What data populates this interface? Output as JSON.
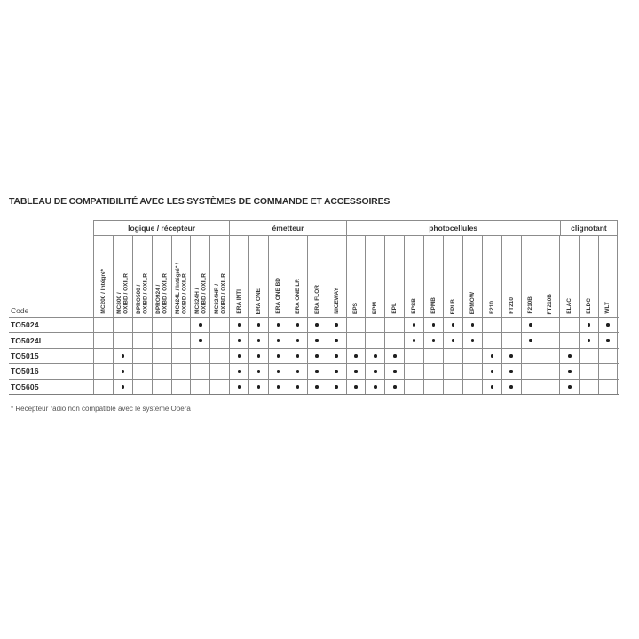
{
  "title": "TABLEAU DE COMPATIBILITÉ AVEC LES SYSTÈMES DE COMMANDE ET ACCESSOIRES",
  "footnote": "* Récepteur radio non compatible avec le système Opera",
  "colors": {
    "grid_border": "#8c8c8c",
    "text": "#333333",
    "dot": "#1f1f1f",
    "background": "#ffffff"
  },
  "table": {
    "row_header_label": "Code",
    "groups": [
      {
        "label": "logique / récepteur",
        "col_count": 7
      },
      {
        "label": "émetteur",
        "col_count": 6
      },
      {
        "label": "photocellules",
        "col_count": 11
      },
      {
        "label": "clignotant",
        "col_count": 3
      }
    ],
    "columns": [
      "MC200 / Intégré*",
      "MC800 /\nOXIBD / OXILR",
      "DPRO500 /\nOXIBD / OXILR",
      "DPRO924 /\nOXIBD / OXILR",
      "MC424L / Intégré* /\nOXIBD / OXILR",
      "MC824H /\nOXIBD / OXILR",
      "MC824HR /\nOXIBD / OXILR",
      "ERA INTI",
      "ERA ONE",
      "ERA ONE BD",
      "ERA ONE LR",
      "ERA FLOR",
      "NICEWAY",
      "EPS",
      "EPM",
      "EPL",
      "EPSB",
      "EPMB",
      "EPLB",
      "EPMOW",
      "F210",
      "FT210",
      "F210B",
      "FT210B",
      "ELAC",
      "ELDC",
      "WLT"
    ],
    "rows": [
      {
        "code": "TO5024",
        "cells": [
          0,
          0,
          0,
          0,
          0,
          1,
          0,
          1,
          1,
          1,
          1,
          1,
          1,
          0,
          0,
          0,
          1,
          1,
          1,
          1,
          0,
          0,
          1,
          0,
          0,
          1,
          1
        ]
      },
      {
        "code": "TO5024I",
        "cells": [
          0,
          0,
          0,
          0,
          0,
          1,
          0,
          1,
          1,
          1,
          1,
          1,
          1,
          0,
          0,
          0,
          1,
          1,
          1,
          1,
          0,
          0,
          1,
          0,
          0,
          1,
          1
        ]
      },
      {
        "code": "TO5015",
        "cells": [
          0,
          1,
          0,
          0,
          0,
          0,
          0,
          1,
          1,
          1,
          1,
          1,
          1,
          1,
          1,
          1,
          0,
          0,
          0,
          0,
          1,
          1,
          0,
          0,
          1,
          0,
          0
        ]
      },
      {
        "code": "TO5016",
        "cells": [
          0,
          1,
          0,
          0,
          0,
          0,
          0,
          1,
          1,
          1,
          1,
          1,
          1,
          1,
          1,
          1,
          0,
          0,
          0,
          0,
          1,
          1,
          0,
          0,
          1,
          0,
          0
        ]
      },
      {
        "code": "TO5605",
        "cells": [
          0,
          1,
          0,
          0,
          0,
          0,
          0,
          1,
          1,
          1,
          1,
          1,
          1,
          1,
          1,
          1,
          0,
          0,
          0,
          0,
          1,
          1,
          0,
          0,
          1,
          0,
          0
        ]
      }
    ]
  }
}
